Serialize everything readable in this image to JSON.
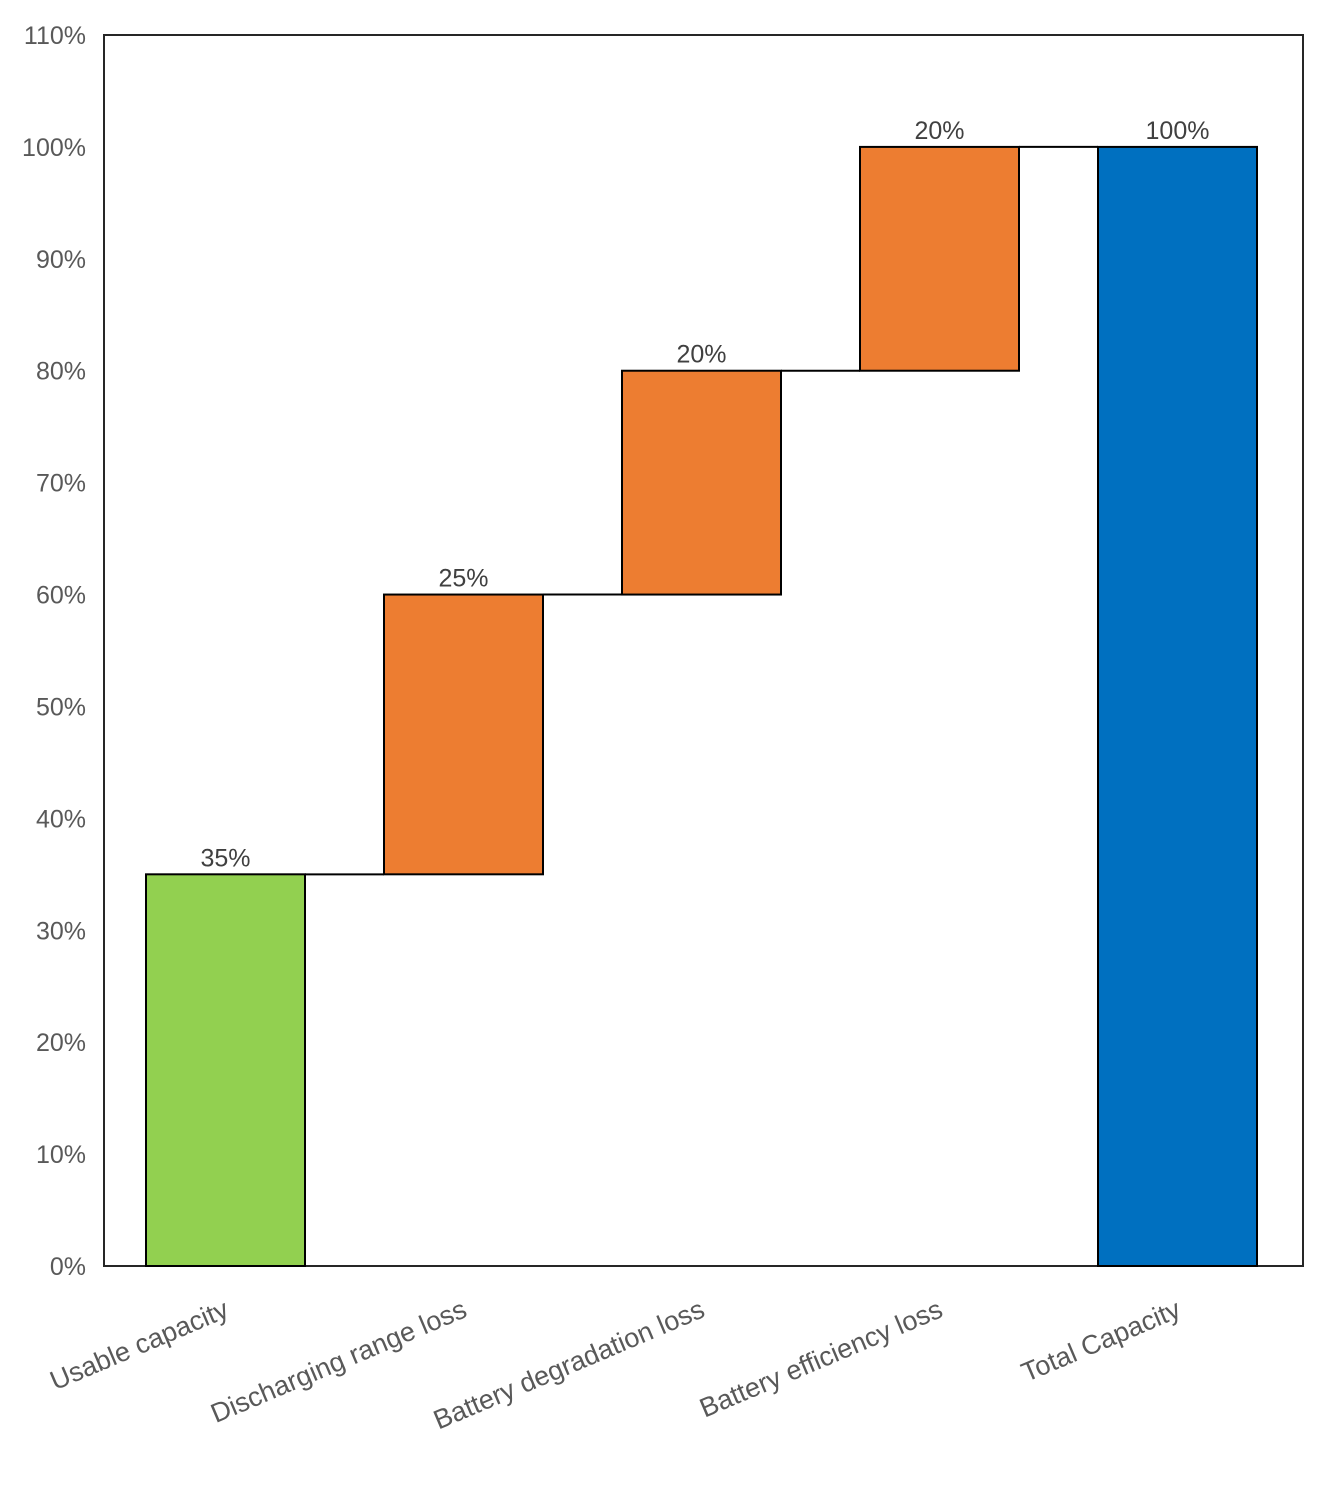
{
  "chart_data": {
    "type": "bar",
    "subtype": "waterfall",
    "title": "",
    "xlabel": "",
    "ylabel": "",
    "ylim": [
      0,
      110
    ],
    "yticks": [
      0,
      10,
      20,
      30,
      40,
      50,
      60,
      70,
      80,
      90,
      100,
      110
    ],
    "ytick_labels": [
      "0%",
      "10%",
      "20%",
      "30%",
      "40%",
      "50%",
      "60%",
      "70%",
      "80%",
      "90%",
      "100%",
      "110%"
    ],
    "grid": false,
    "legend": "none",
    "categories": [
      "Usable capacity",
      "Discharging range loss",
      "Battery degradation loss",
      "Battery efficiency loss",
      "Total Capacity"
    ],
    "bars": [
      {
        "category": "Usable capacity",
        "kind": "start",
        "base": 0,
        "value": 35,
        "label": "35%",
        "color": "#92D050"
      },
      {
        "category": "Discharging range loss",
        "kind": "increment",
        "base": 35,
        "value": 25,
        "label": "25%",
        "color": "#ED7D31"
      },
      {
        "category": "Battery degradation loss",
        "kind": "increment",
        "base": 60,
        "value": 20,
        "label": "20%",
        "color": "#ED7D31"
      },
      {
        "category": "Battery efficiency loss",
        "kind": "increment",
        "base": 80,
        "value": 20,
        "label": "20%",
        "color": "#ED7D31"
      },
      {
        "category": "Total Capacity",
        "kind": "total",
        "base": 0,
        "value": 100,
        "label": "100%",
        "color": "#0070C0"
      }
    ],
    "connector_color": "#000000"
  }
}
